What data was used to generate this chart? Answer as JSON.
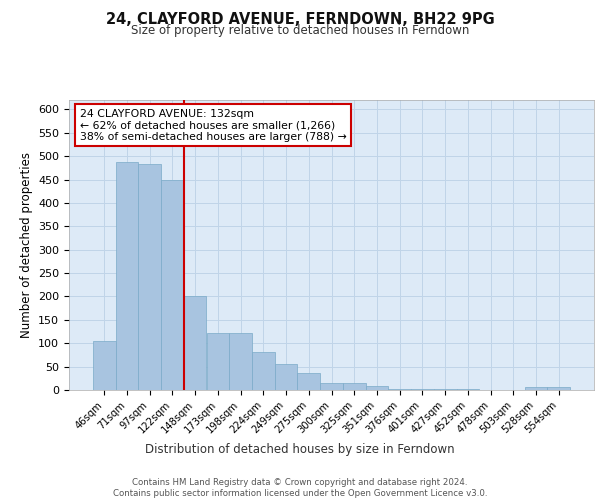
{
  "title": "24, CLAYFORD AVENUE, FERNDOWN, BH22 9PG",
  "subtitle": "Size of property relative to detached houses in Ferndown",
  "xlabel_bottom": "Distribution of detached houses by size in Ferndown",
  "ylabel": "Number of detached properties",
  "categories": [
    "46sqm",
    "71sqm",
    "97sqm",
    "122sqm",
    "148sqm",
    "173sqm",
    "198sqm",
    "224sqm",
    "249sqm",
    "275sqm",
    "300sqm",
    "325sqm",
    "351sqm",
    "376sqm",
    "401sqm",
    "427sqm",
    "452sqm",
    "478sqm",
    "503sqm",
    "528sqm",
    "554sqm"
  ],
  "values": [
    104,
    487,
    484,
    450,
    200,
    121,
    121,
    82,
    55,
    37,
    14,
    14,
    8,
    2,
    2,
    2,
    2,
    0,
    0,
    6,
    6
  ],
  "bar_color": "#a8c4e0",
  "bar_edge_color": "#7aaac8",
  "grid_color": "#c8d8e8",
  "background_color": "#ddeaf7",
  "marker_line_index": 3,
  "annotation_text": "24 CLAYFORD AVENUE: 132sqm\n← 62% of detached houses are smaller (1,266)\n38% of semi-detached houses are larger (788) →",
  "annotation_box_color": "#ffffff",
  "annotation_box_edge_color": "#cc0000",
  "footer_text": "Contains HM Land Registry data © Crown copyright and database right 2024.\nContains public sector information licensed under the Open Government Licence v3.0.",
  "ylim": [
    0,
    620
  ],
  "yticks": [
    0,
    50,
    100,
    150,
    200,
    250,
    300,
    350,
    400,
    450,
    500,
    550,
    600
  ]
}
